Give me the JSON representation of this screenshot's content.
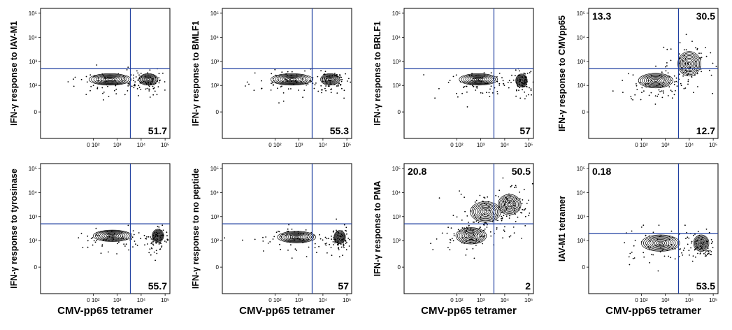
{
  "chart_data": [
    {
      "type": "contour",
      "ylabel": "IFN-γ response to IAV-M1",
      "xlabel": "",
      "quadrants": {
        "UL": "",
        "UR": "",
        "LR": "51.7"
      },
      "y_ticks": [
        "10⁵",
        "10⁴",
        "10³",
        "10²",
        "0"
      ],
      "x_ticks": [
        "0 10²",
        "10³",
        "10⁴",
        "10⁵"
      ],
      "populations": [
        {
          "x": 2.7,
          "y": 2.25,
          "sx": 0.55,
          "sy": 0.14,
          "w": 1
        },
        {
          "x": 4.3,
          "y": 2.25,
          "sx": 0.25,
          "sy": 0.14,
          "w": 1
        }
      ]
    },
    {
      "type": "contour",
      "ylabel": "IFN-γ response to BMLF1",
      "xlabel": "",
      "quadrants": {
        "UL": "",
        "UR": "",
        "LR": "55.3"
      },
      "y_ticks": [
        "10⁵",
        "10⁴",
        "10³",
        "10²",
        "0"
      ],
      "x_ticks": [
        "0 10²",
        "10³",
        "10⁴",
        "10⁵"
      ],
      "populations": [
        {
          "x": 2.7,
          "y": 2.25,
          "sx": 0.55,
          "sy": 0.14,
          "w": 1
        },
        {
          "x": 4.3,
          "y": 2.25,
          "sx": 0.25,
          "sy": 0.14,
          "w": 1
        }
      ]
    },
    {
      "type": "contour",
      "ylabel": "IFN-γ response to BRLF1",
      "xlabel": "",
      "quadrants": {
        "UL": "",
        "UR": "",
        "LR": "57"
      },
      "y_ticks": [
        "10⁵",
        "10⁴",
        "10³",
        "10²",
        "0"
      ],
      "x_ticks": [
        "0 10²",
        "10³",
        "10⁴",
        "10⁵"
      ],
      "populations": [
        {
          "x": 2.9,
          "y": 2.25,
          "sx": 0.5,
          "sy": 0.14,
          "w": 1
        },
        {
          "x": 4.7,
          "y": 2.2,
          "sx": 0.15,
          "sy": 0.16,
          "w": 1
        }
      ]
    },
    {
      "type": "contour",
      "ylabel": "IFN-γ response to CMVpp65",
      "xlabel": "",
      "quadrants": {
        "UL": "13.3",
        "UR": "30.5",
        "LR": "12.7"
      },
      "y_ticks": [
        "10⁵",
        "10⁴",
        "10³",
        "10²",
        "0"
      ],
      "x_ticks": [
        "0 10²",
        "10³",
        "10⁴",
        "10⁵"
      ],
      "populations": [
        {
          "x": 2.6,
          "y": 2.2,
          "sx": 0.45,
          "sy": 0.18,
          "w": 1
        },
        {
          "x": 4.0,
          "y": 2.9,
          "sx": 0.3,
          "sy": 0.3,
          "w": 1
        }
      ]
    },
    {
      "type": "contour",
      "ylabel": "IFN-γ response to tyrosinase",
      "xlabel": "CMV-pp65 tetramer",
      "quadrants": {
        "UL": "",
        "UR": "",
        "LR": "55.7"
      },
      "y_ticks": [
        "10⁵",
        "10⁴",
        "10³",
        "10²",
        "0"
      ],
      "x_ticks": [
        "0 10²",
        "10³",
        "10⁴",
        "10⁵"
      ],
      "populations": [
        {
          "x": 2.8,
          "y": 2.2,
          "sx": 0.5,
          "sy": 0.14,
          "w": 1
        },
        {
          "x": 4.7,
          "y": 2.2,
          "sx": 0.15,
          "sy": 0.16,
          "w": 1
        }
      ]
    },
    {
      "type": "contour",
      "ylabel": "IFN-γ response to no peptide",
      "xlabel": "CMV-pp65 tetramer",
      "quadrants": {
        "UL": "",
        "UR": "",
        "LR": "57"
      },
      "y_ticks": [
        "10⁵",
        "10⁴",
        "10³",
        "10²",
        "0"
      ],
      "x_ticks": [
        "0 10²",
        "10³",
        "10⁴",
        "10⁵"
      ],
      "populations": [
        {
          "x": 2.9,
          "y": 2.15,
          "sx": 0.5,
          "sy": 0.14,
          "w": 1
        },
        {
          "x": 4.7,
          "y": 2.15,
          "sx": 0.15,
          "sy": 0.16,
          "w": 1
        }
      ]
    },
    {
      "type": "contour",
      "ylabel": "IFN-γ response to PMA",
      "xlabel": "CMV-pp65 tetramer",
      "quadrants": {
        "UL": "20.8",
        "UR": "50.5",
        "LR": "2"
      },
      "y_ticks": [
        "10⁵",
        "10⁴",
        "10³",
        "10²",
        "0"
      ],
      "x_ticks": [
        "0 10²",
        "10³",
        "10⁴",
        "10⁵"
      ],
      "populations": [
        {
          "x": 2.6,
          "y": 2.2,
          "sx": 0.4,
          "sy": 0.2,
          "w": 1
        },
        {
          "x": 3.2,
          "y": 3.2,
          "sx": 0.4,
          "sy": 0.25,
          "w": 0.8
        },
        {
          "x": 4.2,
          "y": 3.5,
          "sx": 0.3,
          "sy": 0.25,
          "w": 1
        }
      ]
    },
    {
      "type": "contour",
      "ylabel": "IAV-M1 tetramer",
      "xlabel": "CMV-pp65 tetramer",
      "quadrants": {
        "UL": "0.18",
        "UR": "",
        "LR": "53.5"
      },
      "y_ticks": [
        "10⁵",
        "10⁴",
        "10³",
        "10²",
        "0"
      ],
      "x_ticks": [
        "0 10²",
        "10³",
        "10⁴",
        "10⁵"
      ],
      "populations": [
        {
          "x": 2.8,
          "y": 1.9,
          "sx": 0.5,
          "sy": 0.2,
          "w": 1
        },
        {
          "x": 4.5,
          "y": 1.9,
          "sx": 0.2,
          "sy": 0.2,
          "w": 1
        }
      ]
    }
  ],
  "colors": {
    "contour": "#000000",
    "gate": "#1f3fa0",
    "axis": "#000000"
  }
}
